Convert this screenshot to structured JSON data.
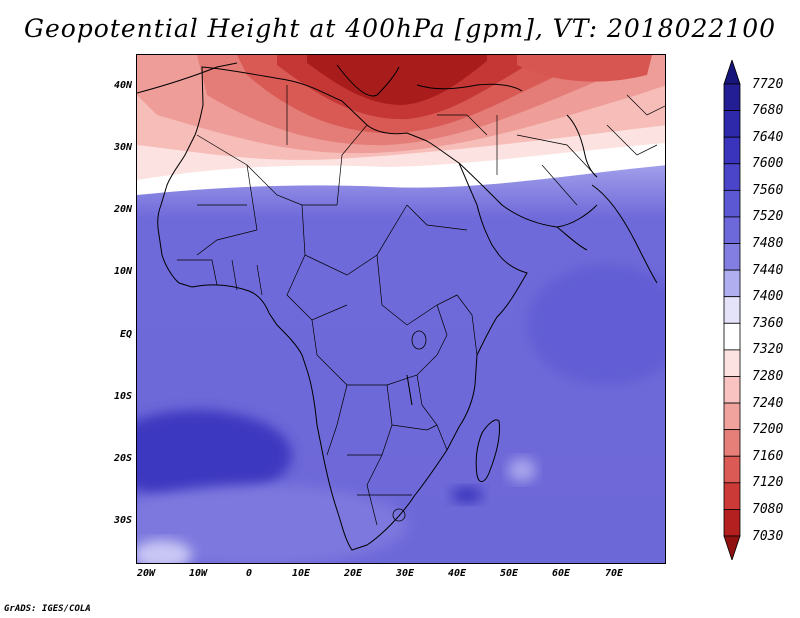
{
  "title": "Geopotential Height at 400hPa [gpm], VT: 2018022100",
  "credit": "GrADS: IGES/COLA",
  "map": {
    "lat_labels": [
      "40N",
      "30N",
      "20N",
      "10N",
      "EQ",
      "10S",
      "20S",
      "30S"
    ],
    "lon_labels": [
      "20W",
      "10W",
      "0",
      "10E",
      "20E",
      "30E",
      "40E",
      "50E",
      "60E",
      "70E"
    ]
  },
  "colorbar": {
    "levels": [
      "7720",
      "7680",
      "7640",
      "7600",
      "7560",
      "7520",
      "7480",
      "7440",
      "7400",
      "7360",
      "7320",
      "7280",
      "7240",
      "7200",
      "7160",
      "7120",
      "7080",
      "7030"
    ],
    "colors": [
      "#17157a",
      "#241e95",
      "#2e28aa",
      "#3a34bc",
      "#4a45c9",
      "#5c57d3",
      "#6e69db",
      "#837fe2",
      "#b0aeef",
      "#e4e3fa",
      "#ffffff",
      "#fce2e0",
      "#f8c3c0",
      "#f0a29d",
      "#e77f79",
      "#dc5a56",
      "#cc3a38",
      "#b3201f",
      "#8f1210"
    ]
  }
}
